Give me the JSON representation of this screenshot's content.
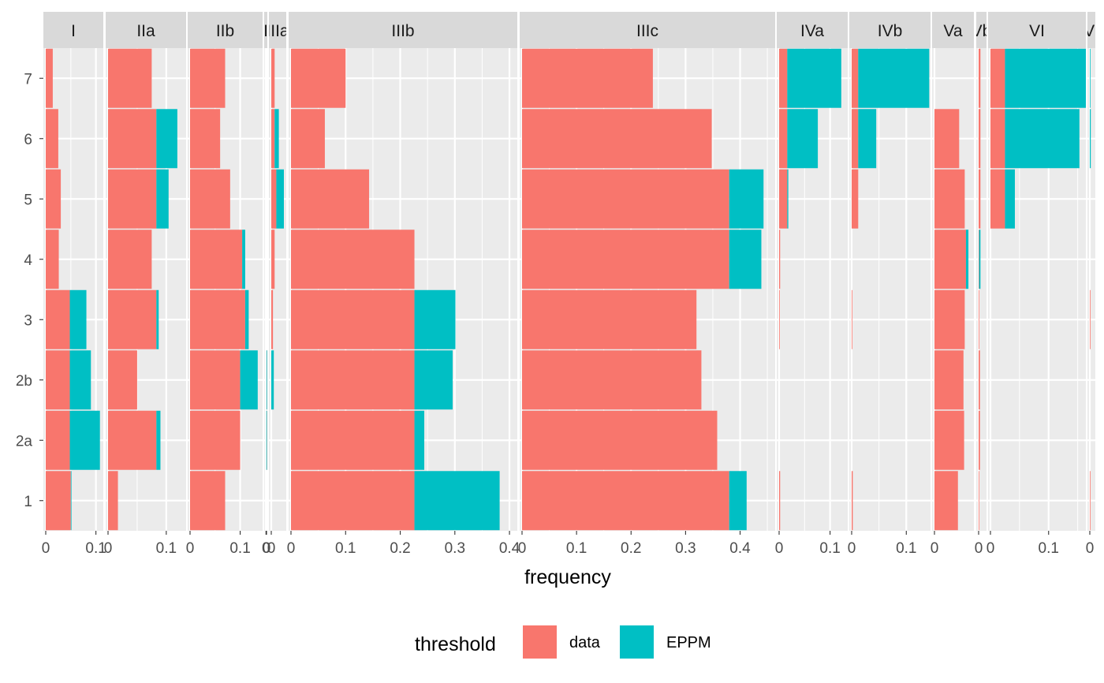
{
  "chart_data": {
    "type": "bar",
    "orientation": "horizontal",
    "stacked": true,
    "x_label": "frequency",
    "y_categories": [
      "1",
      "2a",
      "2b",
      "3",
      "4",
      "5",
      "6",
      "7"
    ],
    "legend": {
      "title": "threshold",
      "position": "bottom",
      "entries": [
        {
          "name": "data",
          "color": "#F8766D"
        },
        {
          "name": "EPPM",
          "color": "#00BFC4"
        }
      ]
    },
    "panels": [
      {
        "label": "I",
        "ticks": [
          "0",
          "0.1"
        ],
        "tick_values": [
          0,
          0.1
        ],
        "xlim": [
          0,
          0.11
        ],
        "series": [
          {
            "name": "data",
            "values": [
              0.05,
              0.048,
              0.048,
              0.048,
              0.026,
              0.03,
              0.025,
              0.014
            ]
          },
          {
            "name": "EPPM",
            "values": [
              0.001,
              0.06,
              0.042,
              0.033,
              0.0,
              0.0,
              0.0,
              0.0
            ]
          }
        ]
      },
      {
        "label": "IIa",
        "ticks": [
          "0",
          "0.1"
        ],
        "tick_values": [
          0,
          0.1
        ],
        "xlim": [
          0,
          0.13
        ],
        "series": [
          {
            "name": "data",
            "values": [
              0.017,
              0.083,
              0.05,
              0.083,
              0.075,
              0.083,
              0.083,
              0.075
            ]
          },
          {
            "name": "EPPM",
            "values": [
              0.0,
              0.007,
              0.0,
              0.004,
              0.0,
              0.021,
              0.036,
              0.0
            ]
          }
        ]
      },
      {
        "label": "IIb",
        "ticks": [
          "0",
          "0.1"
        ],
        "tick_values": [
          0,
          0.1
        ],
        "xlim": [
          0,
          0.14
        ],
        "series": [
          {
            "name": "data",
            "values": [
              0.07,
              0.1,
              0.1,
              0.11,
              0.104,
              0.08,
              0.06,
              0.07
            ]
          },
          {
            "name": "EPPM",
            "values": [
              0.0,
              0.0,
              0.035,
              0.007,
              0.006,
              0.0,
              0.0,
              0.0
            ]
          }
        ]
      },
      {
        "label": "IIIa",
        "ticks": [
          "0",
          "0"
        ],
        "tick_values": [
          0,
          0.01
        ],
        "xlim": [
          0,
          0.03
        ],
        "series": [
          {
            "name": "data",
            "values": [
              0.0,
              0.004,
              0.002,
              0.0,
              0.0,
              0.0,
              0.0,
              0.0
            ]
          },
          {
            "name": "EPPM",
            "values": [
              0.0,
              0.005,
              0.002,
              0.0,
              0.0,
              0.0,
              0.0,
              0.0
            ]
          }
        ]
      },
      {
        "label": "IIIa",
        "ticks": [
          "0"
        ],
        "tick_values": [
          0
        ],
        "xlim": [
          0,
          0.015
        ],
        "series": [
          {
            "name": "data",
            "values": [
              0.0,
              0.0,
              0.0,
              0.002,
              0.004,
              0.006,
              0.004,
              0.004
            ]
          },
          {
            "name": "EPPM",
            "values": [
              0.0,
              0.0,
              0.003,
              0.0,
              0.0,
              0.009,
              0.005,
              0.0
            ]
          }
        ]
      },
      {
        "label": "IIIb",
        "ticks": [
          "0",
          "0.1",
          "0.2",
          "0.3",
          "0.4"
        ],
        "tick_values": [
          0,
          0.1,
          0.2,
          0.3,
          0.4
        ],
        "xlim": [
          0,
          0.41
        ],
        "series": [
          {
            "name": "data",
            "values": [
              0.226,
              0.226,
              0.226,
              0.226,
              0.226,
              0.143,
              0.062,
              0.1
            ]
          },
          {
            "name": "EPPM",
            "values": [
              0.156,
              0.018,
              0.07,
              0.075,
              0.0,
              0.0,
              0.0,
              0.0
            ]
          }
        ]
      },
      {
        "label": "IIIc",
        "ticks": [
          "0",
          "0.1",
          "0.2",
          "0.3",
          "0.4"
        ],
        "tick_values": [
          0,
          0.1,
          0.2,
          0.3,
          0.4
        ],
        "xlim": [
          0,
          0.46
        ],
        "series": [
          {
            "name": "data",
            "values": [
              0.38,
              0.358,
              0.329,
              0.32,
              0.38,
              0.38,
              0.348,
              0.24
            ]
          },
          {
            "name": "EPPM",
            "values": [
              0.032,
              0.0,
              0.0,
              0.0,
              0.059,
              0.063,
              0.0,
              0.0
            ]
          }
        ]
      },
      {
        "label": "IVa",
        "ticks": [
          "0",
          "0.1"
        ],
        "tick_values": [
          0,
          0.1
        ],
        "xlim": [
          0,
          0.13
        ],
        "series": [
          {
            "name": "data",
            "values": [
              0.002,
              0.0,
              0.0,
              0.001,
              0.002,
              0.016,
              0.016,
              0.016
            ]
          },
          {
            "name": "EPPM",
            "values": [
              0.0,
              0.0,
              0.0,
              0.0,
              0.0,
              0.002,
              0.06,
              0.106
            ]
          }
        ]
      },
      {
        "label": "IVb",
        "ticks": [
          "0",
          "0.1"
        ],
        "tick_values": [
          0,
          0.1
        ],
        "xlim": [
          0,
          0.14
        ],
        "series": [
          {
            "name": "data",
            "values": [
              0.002,
              0.0,
              0.0,
              0.001,
              0.0,
              0.012,
              0.012,
              0.012
            ]
          },
          {
            "name": "EPPM",
            "values": [
              0.0,
              0.0,
              0.0,
              0.0,
              0.0,
              0.0,
              0.033,
              0.13
            ]
          }
        ]
      },
      {
        "label": "Va",
        "ticks": [
          "0"
        ],
        "tick_values": [
          0
        ],
        "xlim": [
          0,
          0.06
        ],
        "series": [
          {
            "name": "data",
            "values": [
              0.038,
              0.048,
              0.047,
              0.049,
              0.051,
              0.049,
              0.04,
              0.0
            ]
          },
          {
            "name": "EPPM",
            "values": [
              0.0,
              0.0,
              0.0,
              0.0,
              0.004,
              0.0,
              0.0,
              0.0
            ]
          }
        ]
      },
      {
        "label": "Vb",
        "ticks": [
          "0"
        ],
        "tick_values": [
          0
        ],
        "xlim": [
          0,
          0.012
        ],
        "series": [
          {
            "name": "data",
            "values": [
              0.001,
              0.003,
              0.003,
              0.001,
              0.001,
              0.004,
              0.004,
              0.004
            ]
          },
          {
            "name": "EPPM",
            "values": [
              0.0,
              0.0,
              0.0,
              0.0,
              0.003,
              0.0,
              0.0,
              0.0
            ]
          }
        ]
      },
      {
        "label": "VI",
        "ticks": [
          "0",
          "0.1"
        ],
        "tick_values": [
          0,
          0.1
        ],
        "xlim": [
          0,
          0.16
        ],
        "series": [
          {
            "name": "data",
            "values": [
              0.0,
              0.0,
              0.0,
              0.0,
              0.0,
              0.025,
              0.025,
              0.025
            ]
          },
          {
            "name": "EPPM",
            "values": [
              0.0,
              0.0,
              0.0,
              0.0,
              0.0,
              0.017,
              0.128,
              0.142
            ]
          }
        ]
      },
      {
        "label": "VI",
        "ticks": [
          "0"
        ],
        "tick_values": [
          0
        ],
        "xlim": [
          0,
          0.01
        ],
        "series": [
          {
            "name": "data",
            "values": [
              0.002,
              0.0,
              0.0,
              0.002,
              0.0,
              0.0,
              0.0,
              0.0
            ]
          },
          {
            "name": "EPPM",
            "values": [
              0.0,
              0.0,
              0.0,
              0.0,
              0.0,
              0.0,
              0.003,
              0.002
            ]
          }
        ]
      }
    ]
  }
}
